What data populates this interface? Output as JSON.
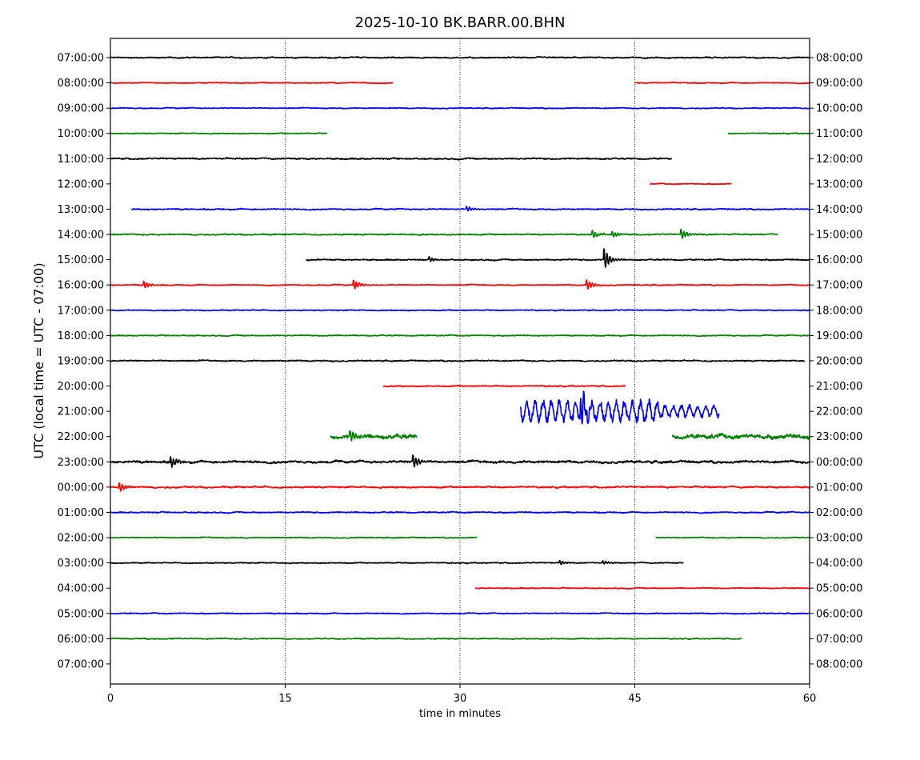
{
  "chart_data": {
    "type": "line",
    "subtype": "helicorder",
    "title": "2025-10-10 BK.BARR.00.BHN",
    "xlabel": "time in minutes",
    "ylabel": "UTC (local time = UTC - 07:00)",
    "xlim": [
      0,
      60
    ],
    "xticks": [
      "0",
      "15",
      "30",
      "45",
      "60"
    ],
    "xtick_values": [
      0,
      15,
      30,
      45,
      60
    ],
    "grid": "vertical dotted at 15, 30, 45",
    "colors": {
      "black": "#000000",
      "red": "#ff0000",
      "blue": "#0000ff",
      "green": "#008000"
    },
    "rows": [
      {
        "left": "07:00:00",
        "right": "08:00:00",
        "color": "#000000",
        "segments": [
          [
            0,
            60
          ]
        ],
        "noise": 0.06,
        "events": []
      },
      {
        "left": "08:00:00",
        "right": "09:00:00",
        "color": "#ff0000",
        "segments": [
          [
            0,
            24.3
          ],
          [
            45,
            60
          ]
        ],
        "noise": 0.05,
        "events": []
      },
      {
        "left": "09:00:00",
        "right": "10:00:00",
        "color": "#0000ff",
        "segments": [
          [
            0,
            60
          ]
        ],
        "noise": 0.05,
        "events": []
      },
      {
        "left": "10:00:00",
        "right": "11:00:00",
        "color": "#008000",
        "segments": [
          [
            0,
            18.6
          ],
          [
            53,
            60
          ]
        ],
        "noise": 0.05,
        "events": []
      },
      {
        "left": "11:00:00",
        "right": "12:00:00",
        "color": "#000000",
        "segments": [
          [
            0,
            48.2
          ]
        ],
        "noise": 0.07,
        "events": []
      },
      {
        "left": "12:00:00",
        "right": "13:00:00",
        "color": "#ff0000",
        "segments": [
          [
            46.3,
            53.3
          ]
        ],
        "noise": 0.05,
        "events": []
      },
      {
        "left": "13:00:00",
        "right": "14:00:00",
        "color": "#0000ff",
        "segments": [
          [
            1.8,
            60
          ]
        ],
        "noise": 0.06,
        "events": [
          {
            "t": 30.5,
            "amp": 0.25
          }
        ]
      },
      {
        "left": "14:00:00",
        "right": "15:00:00",
        "color": "#008000",
        "segments": [
          [
            0,
            57.3
          ]
        ],
        "noise": 0.06,
        "events": [
          {
            "t": 41.3,
            "amp": 0.35
          },
          {
            "t": 43,
            "amp": 0.3
          },
          {
            "t": 48.9,
            "amp": 0.5
          }
        ]
      },
      {
        "left": "15:00:00",
        "right": "16:00:00",
        "color": "#000000",
        "segments": [
          [
            16.8,
            60
          ]
        ],
        "noise": 0.06,
        "events": [
          {
            "t": 27.3,
            "amp": 0.2
          },
          {
            "t": 42.3,
            "amp": 0.95
          }
        ]
      },
      {
        "left": "16:00:00",
        "right": "17:00:00",
        "color": "#ff0000",
        "segments": [
          [
            0,
            60
          ]
        ],
        "noise": 0.05,
        "events": [
          {
            "t": 2.8,
            "amp": 0.35
          },
          {
            "t": 20.8,
            "amp": 0.45
          },
          {
            "t": 40.8,
            "amp": 0.45
          }
        ]
      },
      {
        "left": "17:00:00",
        "right": "18:00:00",
        "color": "#0000ff",
        "segments": [
          [
            0,
            60
          ]
        ],
        "noise": 0.05,
        "events": []
      },
      {
        "left": "18:00:00",
        "right": "19:00:00",
        "color": "#008000",
        "segments": [
          [
            0,
            60
          ]
        ],
        "noise": 0.05,
        "events": []
      },
      {
        "left": "19:00:00",
        "right": "20:00:00",
        "color": "#000000",
        "segments": [
          [
            0,
            59.6
          ]
        ],
        "noise": 0.06,
        "events": []
      },
      {
        "left": "20:00:00",
        "right": "21:00:00",
        "color": "#ff0000",
        "segments": [
          [
            23.4,
            44.2
          ]
        ],
        "noise": 0.06,
        "events": []
      },
      {
        "left": "21:00:00",
        "right": "22:00:00",
        "color": "#0000ff",
        "segments": [
          [
            35.2,
            52.3
          ]
        ],
        "noise": 0.9,
        "events": [
          {
            "t": 40.3,
            "amp": 1.6
          }
        ]
      },
      {
        "left": "22:00:00",
        "right": "23:00:00",
        "color": "#008000",
        "segments": [
          [
            18.9,
            26.3
          ],
          [
            48.2,
            60
          ]
        ],
        "noise": 0.22,
        "events": [
          {
            "t": 20.5,
            "amp": 0.5
          }
        ]
      },
      {
        "left": "23:00:00",
        "right": "00:00:00",
        "color": "#000000",
        "segments": [
          [
            0,
            60
          ]
        ],
        "noise": 0.12,
        "events": [
          {
            "t": 5.1,
            "amp": 0.55
          },
          {
            "t": 25.9,
            "amp": 0.6
          }
        ]
      },
      {
        "left": "00:00:00",
        "right": "01:00:00",
        "color": "#ff0000",
        "segments": [
          [
            0,
            60
          ]
        ],
        "noise": 0.08,
        "events": [
          {
            "t": 0.7,
            "amp": 0.45
          }
        ]
      },
      {
        "left": "01:00:00",
        "right": "02:00:00",
        "color": "#0000ff",
        "segments": [
          [
            0,
            60
          ]
        ],
        "noise": 0.06,
        "events": []
      },
      {
        "left": "02:00:00",
        "right": "03:00:00",
        "color": "#008000",
        "segments": [
          [
            0,
            31.5
          ],
          [
            46.8,
            60
          ]
        ],
        "noise": 0.05,
        "events": []
      },
      {
        "left": "03:00:00",
        "right": "04:00:00",
        "color": "#000000",
        "segments": [
          [
            0,
            49.2
          ]
        ],
        "noise": 0.05,
        "events": [
          {
            "t": 38.5,
            "amp": 0.2
          },
          {
            "t": 42.2,
            "amp": 0.2
          }
        ]
      },
      {
        "left": "04:00:00",
        "right": "05:00:00",
        "color": "#ff0000",
        "segments": [
          [
            31.3,
            60
          ]
        ],
        "noise": 0.05,
        "events": []
      },
      {
        "left": "05:00:00",
        "right": "06:00:00",
        "color": "#0000ff",
        "segments": [
          [
            0,
            60
          ]
        ],
        "noise": 0.05,
        "events": []
      },
      {
        "left": "06:00:00",
        "right": "07:00:00",
        "color": "#008000",
        "segments": [
          [
            0,
            54.2
          ]
        ],
        "noise": 0.05,
        "events": []
      },
      {
        "left": "07:00:00",
        "right": "08:00:00",
        "color": "#000000",
        "segments": [],
        "noise": 0,
        "events": []
      }
    ]
  }
}
